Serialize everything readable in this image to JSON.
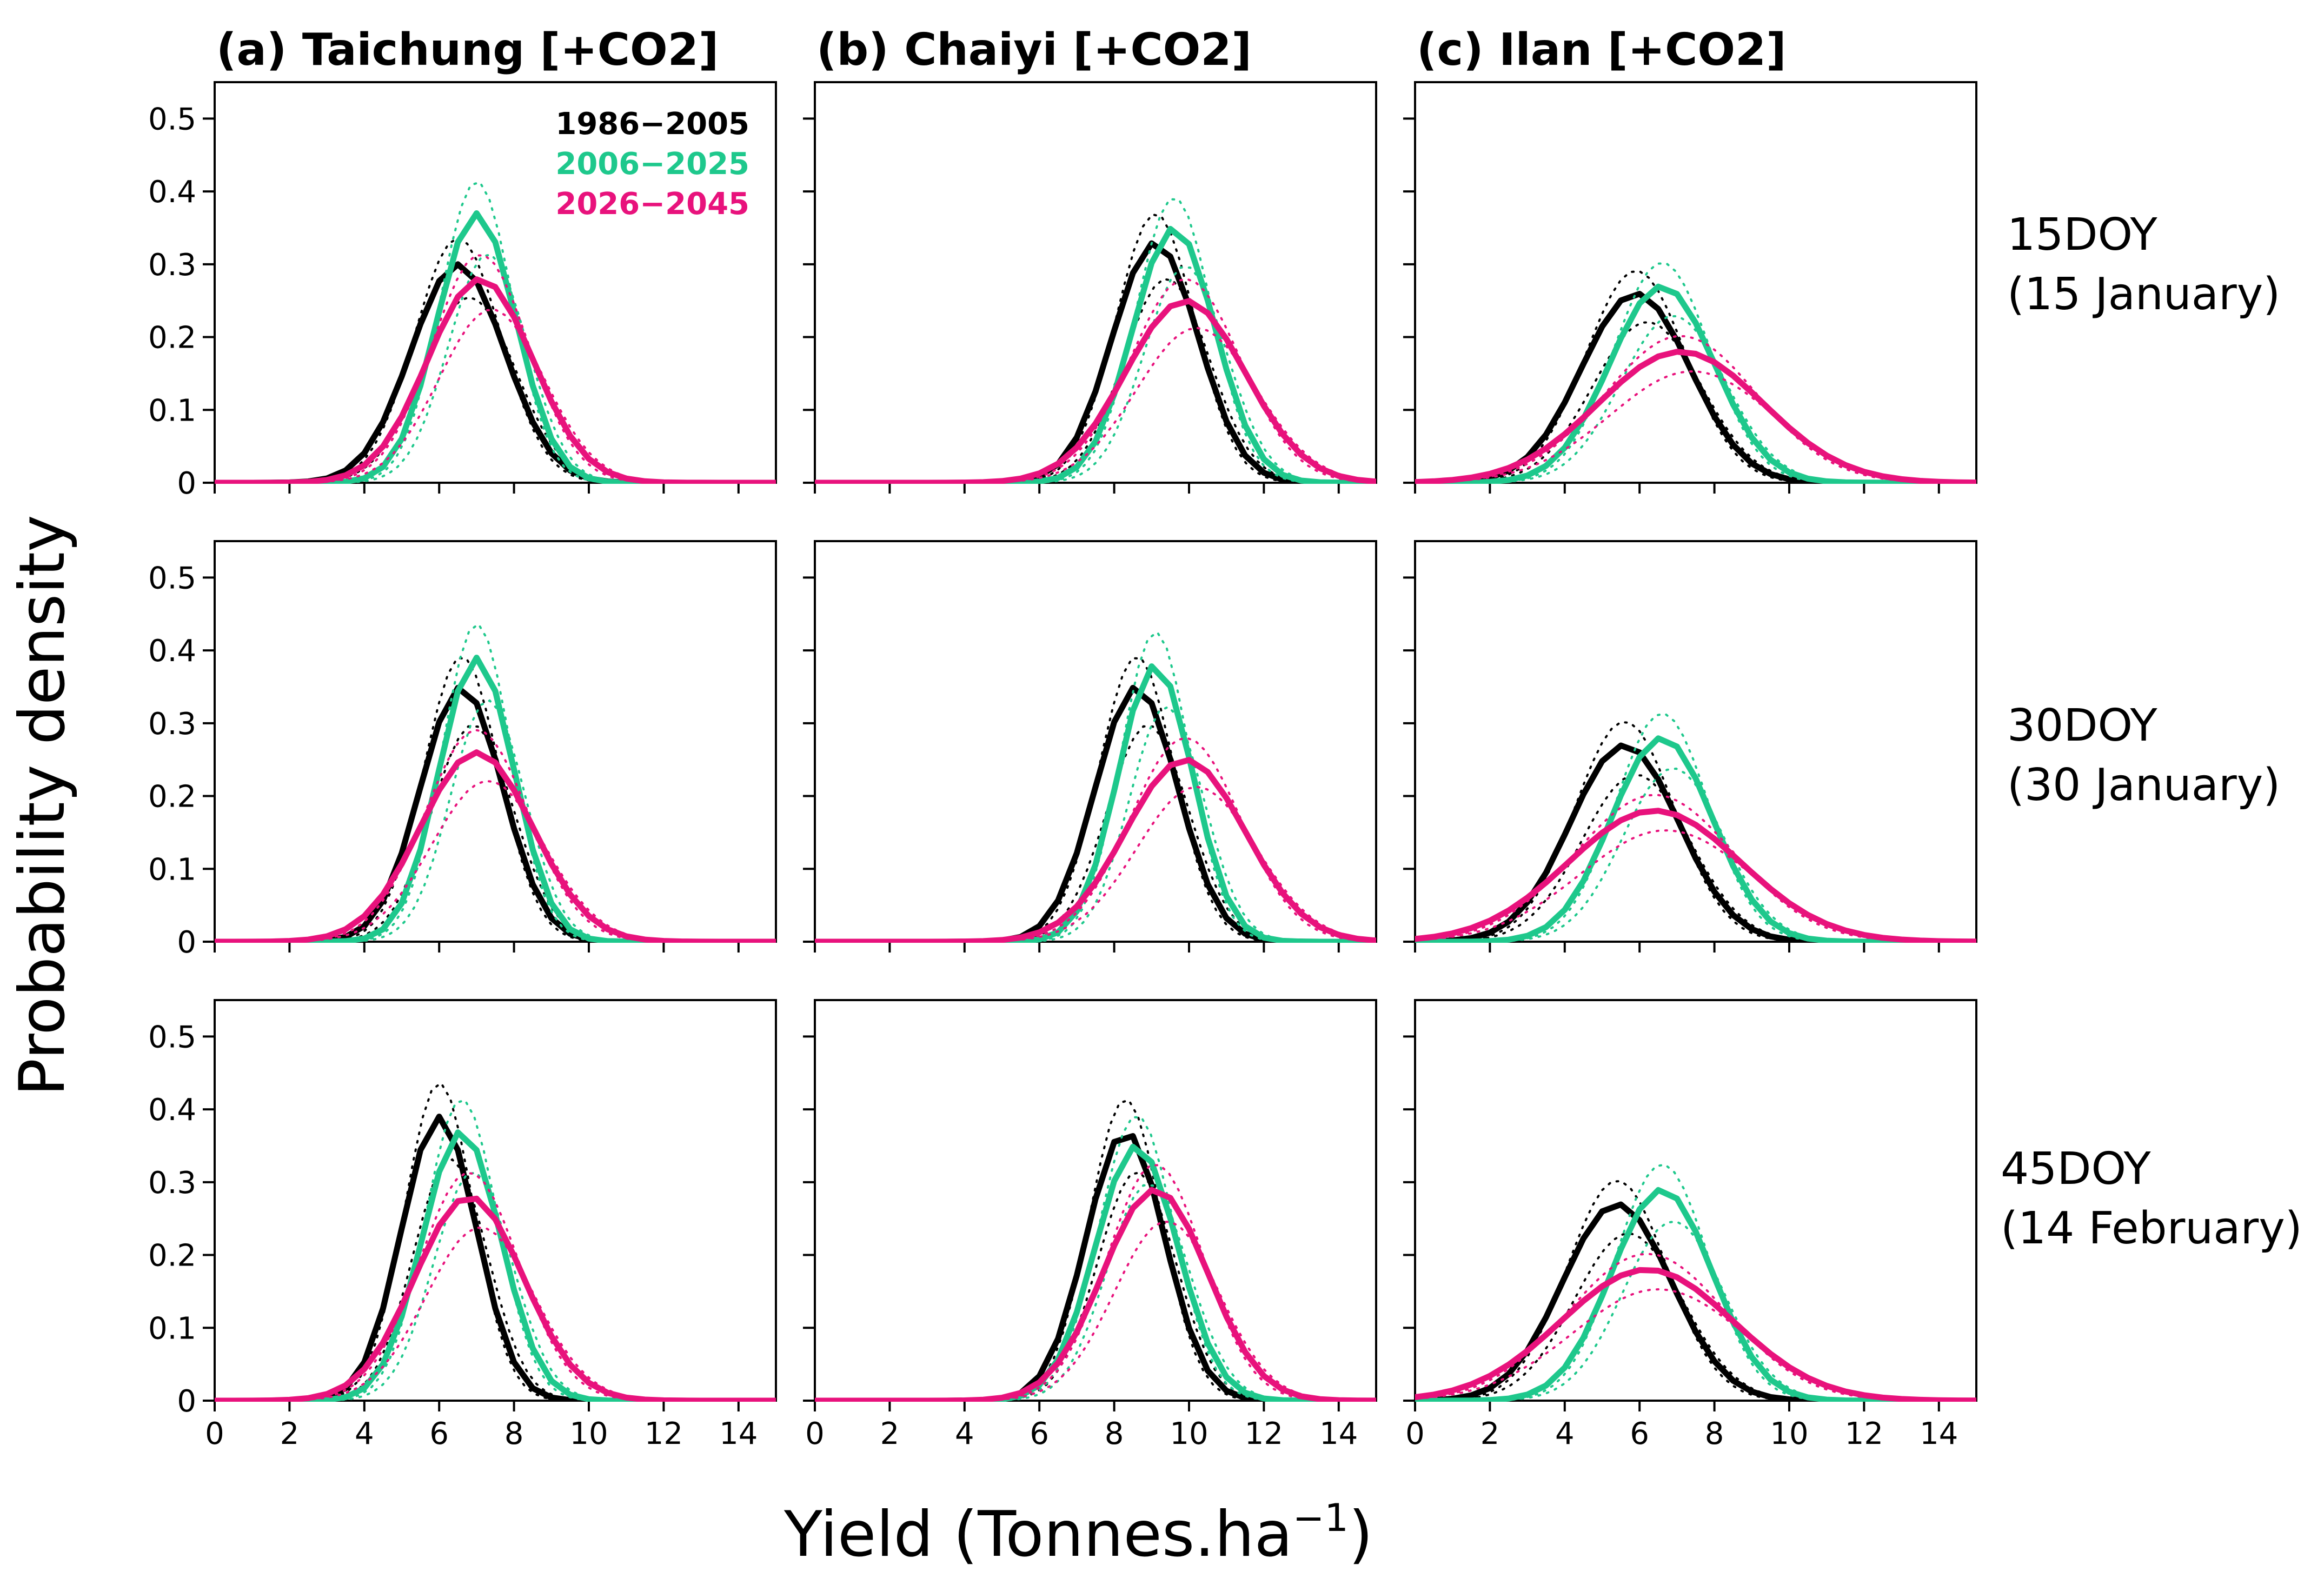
{
  "figure": {
    "ylabel": "Probability density",
    "xlabel": "Yield (Tonnes.ha",
    "xlabel_sup": "−1",
    "xlabel_end": ")"
  },
  "columns": [
    {
      "title": "(a) Taichung [+CO2]"
    },
    {
      "title": "(b) Chaiyi [+CO2]"
    },
    {
      "title": "(c) Ilan [+CO2]"
    }
  ],
  "rows": [
    {
      "label_line1": "15DOY",
      "label_line2": "(15 January)"
    },
    {
      "label_line1": "30DOY",
      "label_line2": "(30 January)"
    },
    {
      "label_line1": "45DOY",
      "label_line2": "(14 February)"
    }
  ],
  "legend": [
    {
      "name": "1986−2005",
      "color": "#000000"
    },
    {
      "name": "2006−2025",
      "color": "#1ec88c"
    },
    {
      "name": "2026−2045",
      "color": "#e8127c"
    }
  ],
  "chart_data": {
    "type": "line",
    "xlim": [
      0,
      15
    ],
    "ylim": [
      0,
      0.55
    ],
    "xticks": [
      0,
      2,
      4,
      6,
      8,
      10,
      12,
      14
    ],
    "yticks": [
      0,
      0.1,
      0.2,
      0.3,
      0.4,
      0.5
    ],
    "ytick_labels": [
      "0",
      "0.1",
      "0.2",
      "0.3",
      "0.4",
      "0.5"
    ],
    "grid": false,
    "legend_position": "top-right of first panel",
    "series_colors": [
      "#000000",
      "#1ec88c",
      "#e8127c"
    ],
    "panels": [
      {
        "row": 0,
        "col": 0,
        "series": [
          {
            "peak_x": 6.5,
            "peak_y": 0.3,
            "sigma": 1.25
          },
          {
            "peak_x": 7.0,
            "peak_y": 0.37,
            "sigma": 1.05
          },
          {
            "peak_x": 7.1,
            "peak_y": 0.28,
            "sigma": 1.4
          }
        ]
      },
      {
        "row": 0,
        "col": 1,
        "series": [
          {
            "peak_x": 9.1,
            "peak_y": 0.33,
            "sigma": 1.15
          },
          {
            "peak_x": 9.6,
            "peak_y": 0.35,
            "sigma": 1.1
          },
          {
            "peak_x": 9.9,
            "peak_y": 0.25,
            "sigma": 1.6
          }
        ]
      },
      {
        "row": 0,
        "col": 2,
        "series": [
          {
            "peak_x": 5.9,
            "peak_y": 0.26,
            "sigma": 1.45
          },
          {
            "peak_x": 6.6,
            "peak_y": 0.27,
            "sigma": 1.4
          },
          {
            "peak_x": 7.1,
            "peak_y": 0.18,
            "sigma": 2.2
          }
        ]
      },
      {
        "row": 1,
        "col": 0,
        "series": [
          {
            "peak_x": 6.6,
            "peak_y": 0.35,
            "sigma": 1.1
          },
          {
            "peak_x": 7.0,
            "peak_y": 0.39,
            "sigma": 1.0
          },
          {
            "peak_x": 7.0,
            "peak_y": 0.26,
            "sigma": 1.5
          }
        ]
      },
      {
        "row": 1,
        "col": 1,
        "series": [
          {
            "peak_x": 8.6,
            "peak_y": 0.35,
            "sigma": 1.1
          },
          {
            "peak_x": 9.1,
            "peak_y": 0.38,
            "sigma": 1.0
          },
          {
            "peak_x": 9.9,
            "peak_y": 0.25,
            "sigma": 1.6
          }
        ]
      },
      {
        "row": 1,
        "col": 2,
        "series": [
          {
            "peak_x": 5.6,
            "peak_y": 0.27,
            "sigma": 1.45
          },
          {
            "peak_x": 6.6,
            "peak_y": 0.28,
            "sigma": 1.35
          },
          {
            "peak_x": 6.4,
            "peak_y": 0.18,
            "sigma": 2.3
          }
        ]
      },
      {
        "row": 2,
        "col": 0,
        "series": [
          {
            "peak_x": 6.0,
            "peak_y": 0.39,
            "sigma": 1.0
          },
          {
            "peak_x": 6.6,
            "peak_y": 0.37,
            "sigma": 1.05
          },
          {
            "peak_x": 6.8,
            "peak_y": 0.28,
            "sigma": 1.45
          }
        ]
      },
      {
        "row": 2,
        "col": 1,
        "series": [
          {
            "peak_x": 8.3,
            "peak_y": 0.37,
            "sigma": 1.05
          },
          {
            "peak_x": 8.6,
            "peak_y": 0.35,
            "sigma": 1.1
          },
          {
            "peak_x": 9.1,
            "peak_y": 0.29,
            "sigma": 1.4
          }
        ]
      },
      {
        "row": 2,
        "col": 2,
        "series": [
          {
            "peak_x": 5.4,
            "peak_y": 0.27,
            "sigma": 1.45
          },
          {
            "peak_x": 6.6,
            "peak_y": 0.29,
            "sigma": 1.35
          },
          {
            "peak_x": 6.2,
            "peak_y": 0.18,
            "sigma": 2.3
          }
        ]
      }
    ]
  }
}
